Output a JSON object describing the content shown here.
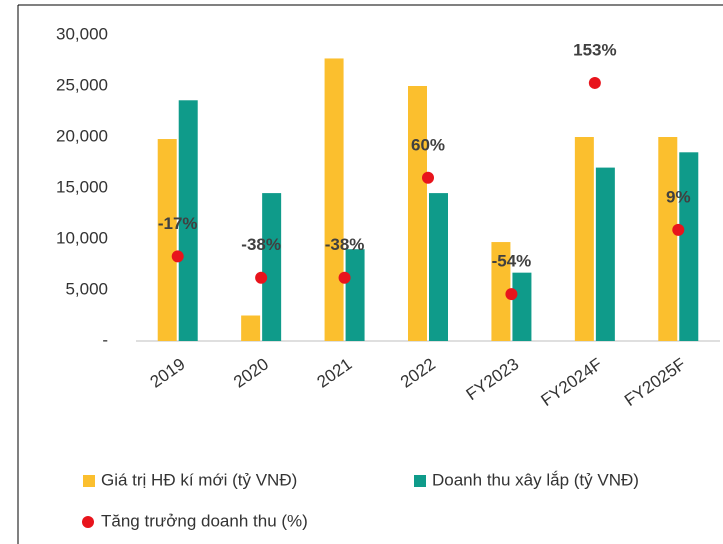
{
  "chart_data": {
    "type": "bar",
    "categories": [
      "2019",
      "2020",
      "2021",
      "2022",
      "FY2023",
      "FY2024F",
      "FY2025F"
    ],
    "series": [
      {
        "name": "Giá trị HĐ kí mới (tỷ VNĐ)",
        "color": "#fbbf2e",
        "values": [
          19800,
          2500,
          27700,
          25000,
          9700,
          20000,
          20000
        ]
      },
      {
        "name": "Doanh thu xây lắp (tỷ VNĐ)",
        "color": "#0f9b8a",
        "values": [
          23600,
          14500,
          9000,
          14500,
          6700,
          17000,
          18500
        ]
      },
      {
        "name": "Tăng trưởng doanh thu (%)",
        "color": "#e8141c",
        "type": "scatter",
        "axis": "y2",
        "values": [
          -17,
          -38,
          -38,
          60,
          -54,
          153,
          9
        ],
        "value_labels": [
          "-17%",
          "-38%",
          "-38%",
          "60%",
          "-54%",
          "153%",
          "9%"
        ]
      }
    ],
    "ylim": [
      0,
      30000
    ],
    "yticks": [
      {
        "value": 0,
        "label": "-"
      },
      {
        "value": 5000,
        "label": "5,000"
      },
      {
        "value": 10000,
        "label": "10,000"
      },
      {
        "value": 15000,
        "label": "15,000"
      },
      {
        "value": 20000,
        "label": "20,000"
      },
      {
        "value": 25000,
        "label": "25,000"
      },
      {
        "value": 30000,
        "label": "30,000"
      }
    ],
    "y2lim": [
      -100,
      200
    ]
  }
}
